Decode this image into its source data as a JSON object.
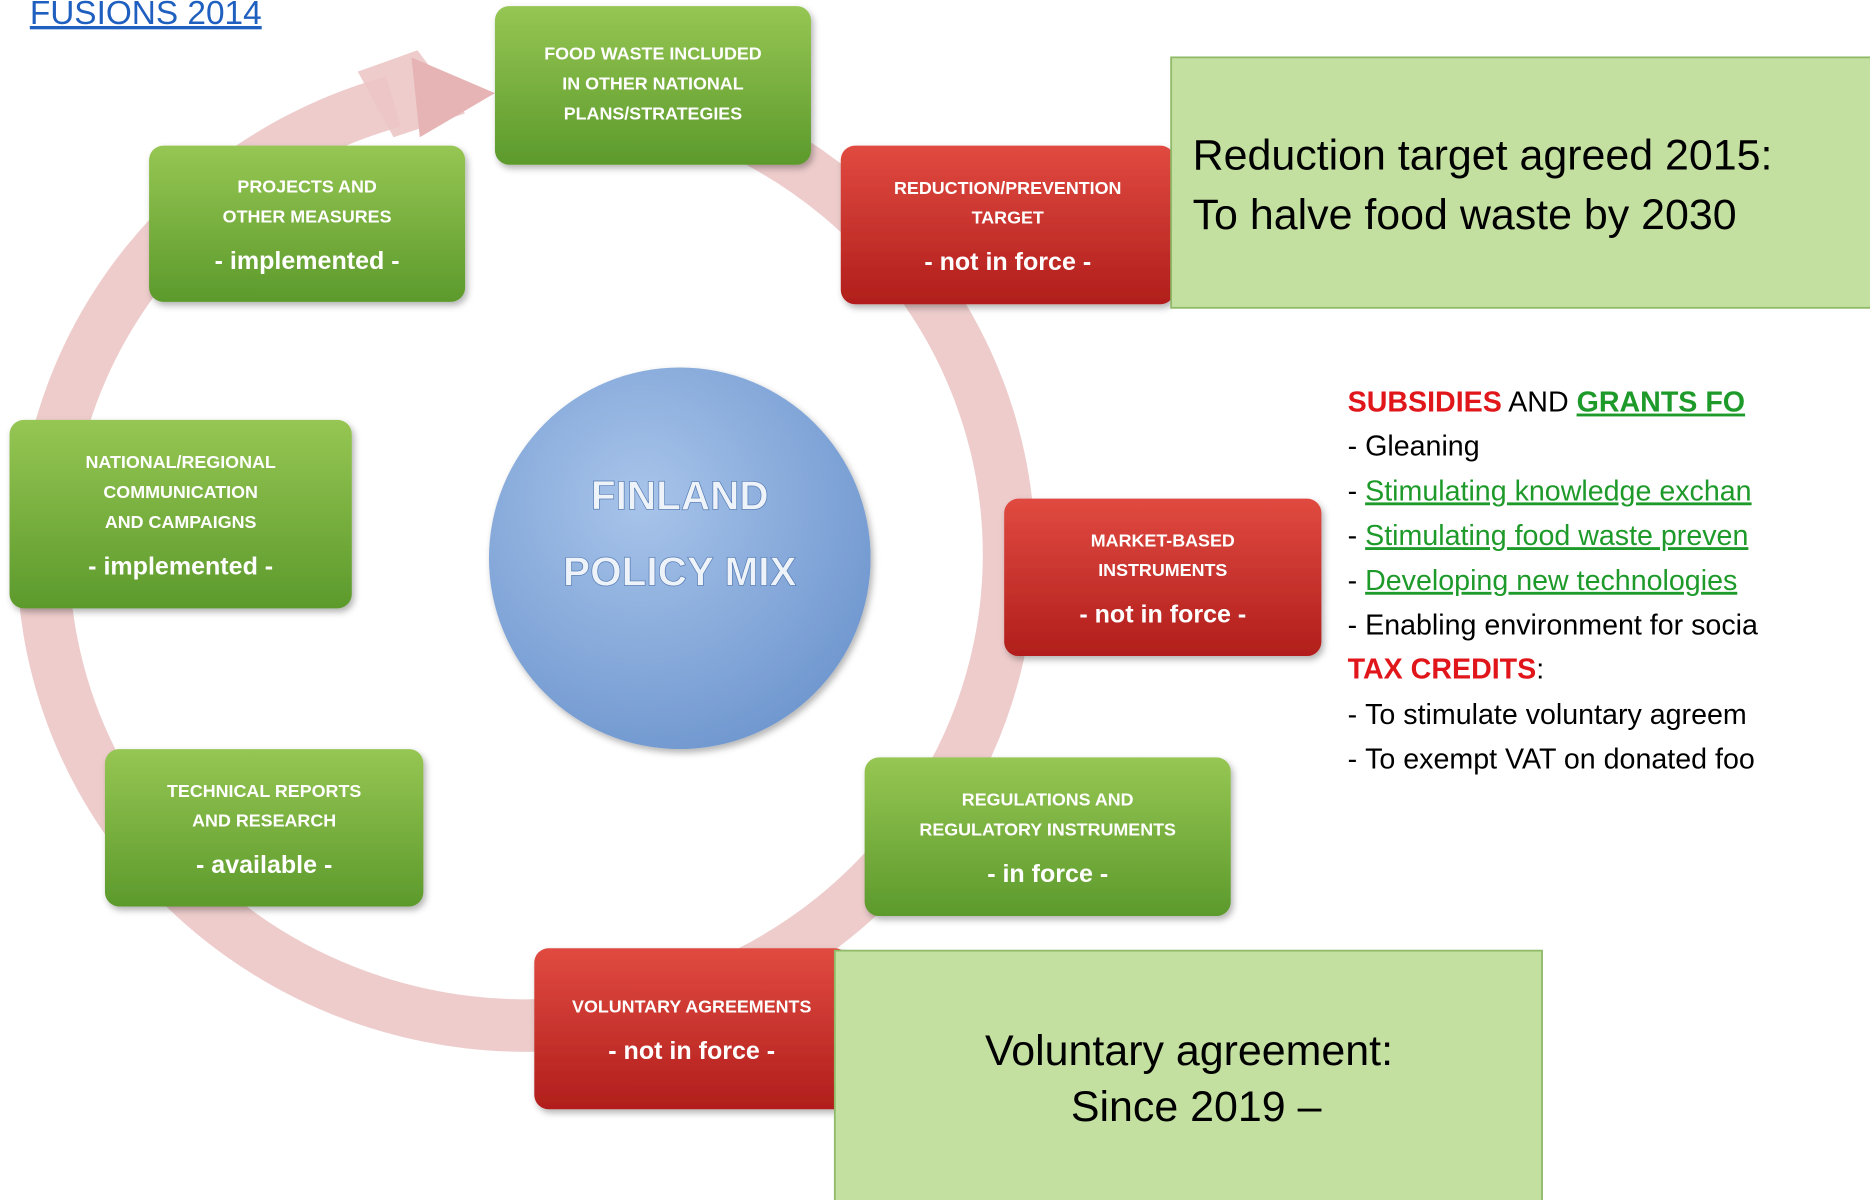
{
  "header": {
    "link": "FUSIONS 2014"
  },
  "center": {
    "lines": [
      "FINLAND",
      "POLICY MIX"
    ]
  },
  "boxes": [
    {
      "color": "green",
      "lines": [
        "FOOD WASTE INCLUDED",
        "IN OTHER NATIONAL",
        "PLANS/STRATEGIES"
      ]
    },
    {
      "color": "red",
      "lines": [
        "REDUCTION/PREVENTION",
        "TARGET"
      ],
      "status": "- not in force -"
    },
    {
      "color": "red",
      "lines": [
        "MARKET-BASED",
        "INSTRUMENTS"
      ],
      "status": "- not in force -"
    },
    {
      "color": "green",
      "lines": [
        "REGULATIONS AND",
        "REGULATORY INSTRUMENTS"
      ],
      "status": "- in force -"
    },
    {
      "color": "red",
      "lines": [
        "VOLUNTARY AGREEMENTS"
      ],
      "status": "- not in force -"
    },
    {
      "color": "green",
      "lines": [
        "TECHNICAL REPORTS",
        "AND RESEARCH"
      ],
      "status": "- available -"
    },
    {
      "color": "green",
      "lines": [
        "NATIONAL/REGIONAL",
        "COMMUNICATION",
        "AND CAMPAIGNS"
      ],
      "status": "- implemented -"
    },
    {
      "color": "green",
      "lines": [
        "PROJECTS AND",
        "OTHER MEASURES"
      ],
      "status": "- implemented -"
    }
  ],
  "callouts": [
    {
      "lines": [
        "Reduction target agreed 2015:",
        "To halve food waste by 2030"
      ]
    },
    {
      "lines": [
        "Voluntary agreement:",
        "Since 2019 –"
      ]
    }
  ],
  "policy_list": {
    "subsidies": "SUBSIDIES",
    "and": " AND ",
    "grants": "GRANTS FO",
    "items": [
      {
        "prefix": "- ",
        "text": "Gleaning",
        "link": false
      },
      {
        "prefix": "- ",
        "text": "Stimulating knowledge exchan",
        "link": true
      },
      {
        "prefix": "- ",
        "text": "Stimulating food waste preven",
        "link": true
      },
      {
        "prefix": "- ",
        "text": "Developing new technologies",
        "link": true
      },
      {
        "prefix": "- ",
        "text": "Enabling environment for socia",
        "link": false
      }
    ],
    "tax_credits": "TAX CREDITS",
    "tax_colon": ":",
    "tax_items": [
      {
        "prefix": "- ",
        "text": "To stimulate voluntary agreem",
        "link": false
      },
      {
        "prefix": "- ",
        "text": "To exempt VAT on donated foo",
        "link": false
      }
    ]
  }
}
